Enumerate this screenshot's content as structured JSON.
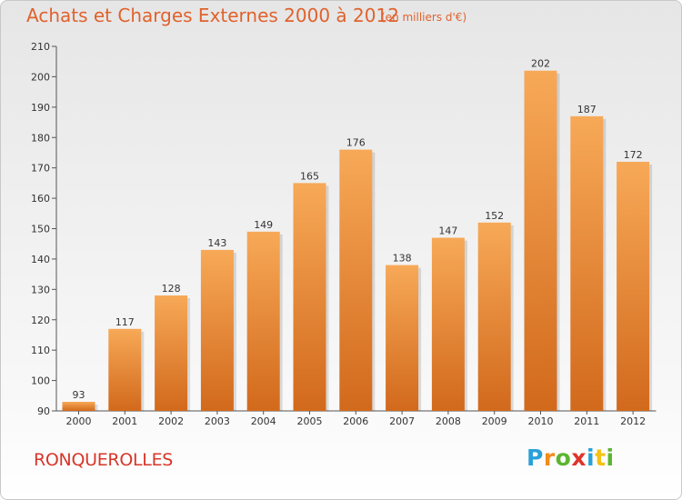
{
  "chart_data": {
    "type": "bar",
    "title": "Achats et Charges Externes 2000 à 2012",
    "subtitle": "(en milliers d'€)",
    "categories": [
      "2000",
      "2001",
      "2002",
      "2003",
      "2004",
      "2005",
      "2006",
      "2007",
      "2008",
      "2009",
      "2010",
      "2011",
      "2012"
    ],
    "values": [
      93,
      117,
      128,
      143,
      149,
      165,
      176,
      138,
      147,
      152,
      202,
      187,
      172
    ],
    "ylim": [
      90,
      210
    ],
    "yticks": [
      90,
      100,
      110,
      120,
      130,
      140,
      150,
      160,
      170,
      180,
      190,
      200,
      210
    ],
    "grid": false,
    "bar_color_top": "#f7a957",
    "bar_color_bottom": "#d2691c"
  },
  "location": "RONQUEROLLES",
  "brand": {
    "letters": [
      "P",
      "r",
      "o",
      "x",
      "i",
      "t",
      "i"
    ],
    "colors": [
      "#2aa0d8",
      "#f28c1a",
      "#5cb531",
      "#e0332b",
      "#2aa0d8",
      "#f6c114",
      "#5cb531"
    ]
  }
}
